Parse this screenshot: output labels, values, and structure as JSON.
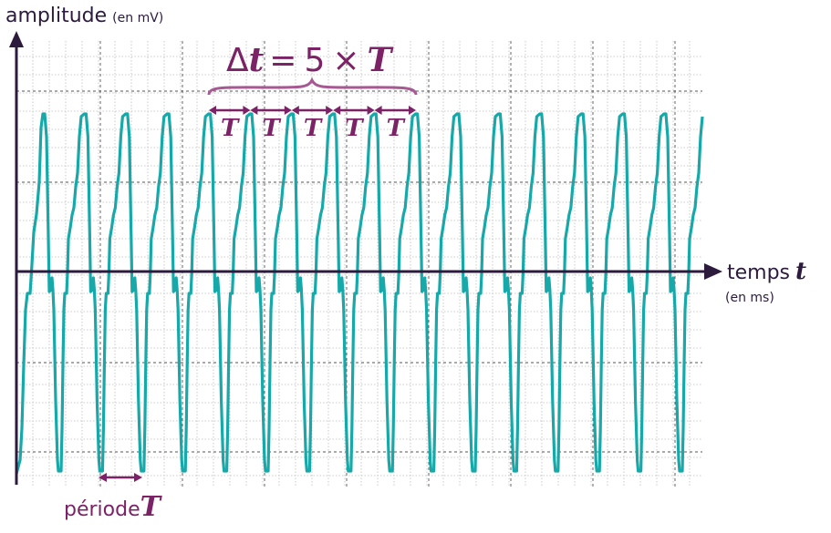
{
  "axes": {
    "y_label": "amplitude",
    "y_unit": "(en mV)",
    "x_label": "temps",
    "x_symbol": "t",
    "x_unit": "(en ms)"
  },
  "interval": {
    "delta": "Δ",
    "t": "t",
    "equals": "=",
    "five": "5",
    "times": "×",
    "T": "T",
    "period_labels": [
      "T",
      "T",
      "T",
      "T",
      "T"
    ]
  },
  "period": {
    "label": "période",
    "symbol": "T"
  }
}
